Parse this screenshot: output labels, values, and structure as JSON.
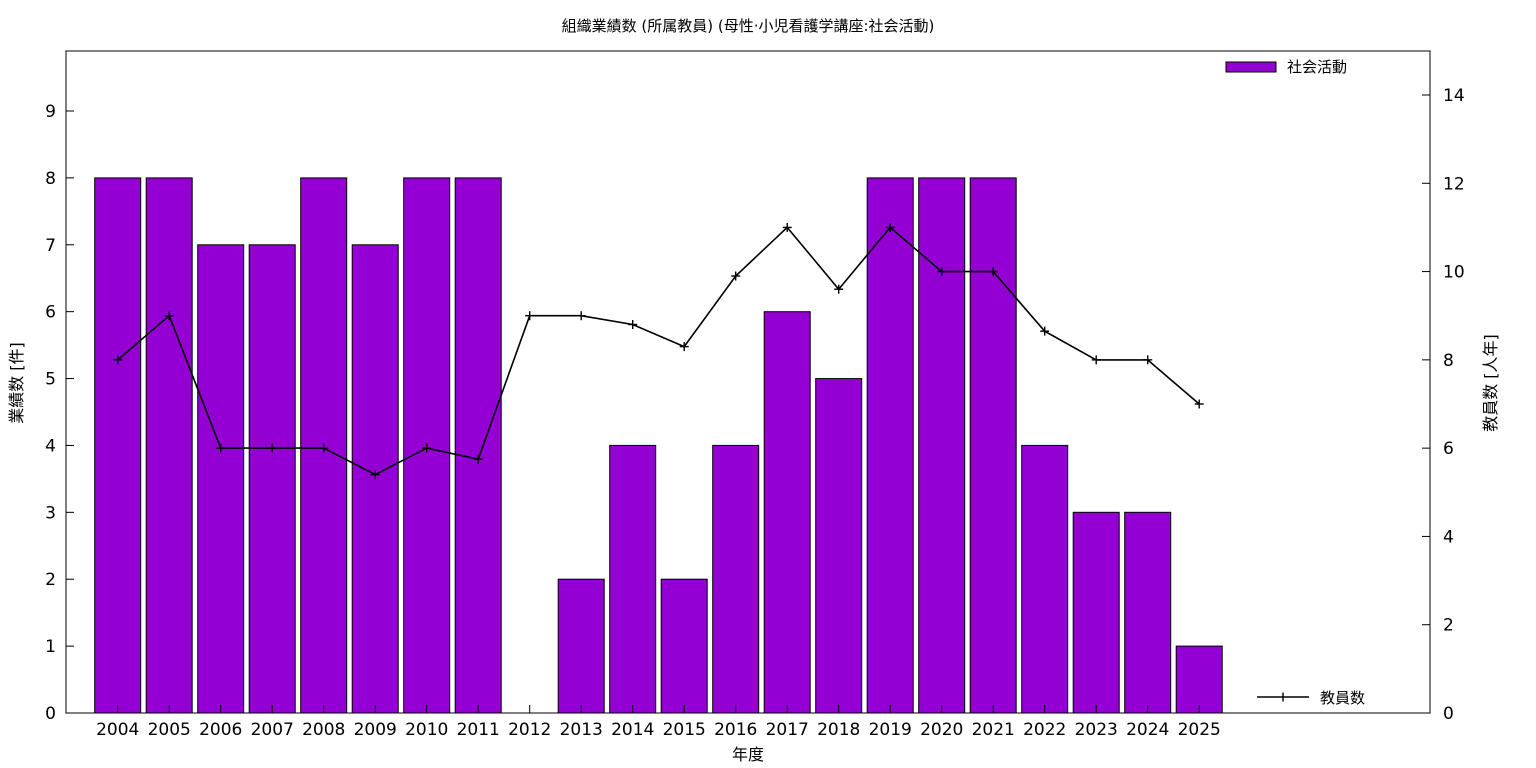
{
  "chart_data": {
    "type": "bar",
    "title": "組織業績数 (所属教員) (母性·小児看護学講座:社会活動)",
    "xlabel": "年度",
    "ylabel": "業績数 [件]",
    "y2label": "教員数 [人年]",
    "categories": [
      "2004",
      "2005",
      "2006",
      "2007",
      "2008",
      "2009",
      "2010",
      "2011",
      "2012",
      "2013",
      "2014",
      "2015",
      "2016",
      "2017",
      "2018",
      "2019",
      "2020",
      "2021",
      "2022",
      "2023",
      "2024",
      "2025"
    ],
    "series": [
      {
        "name": "社会活動",
        "type": "bar",
        "axis": "left",
        "color": "#9400d3",
        "values": [
          8,
          8,
          7,
          7,
          8,
          7,
          8,
          8,
          0,
          2,
          4,
          2,
          4,
          6,
          5,
          8,
          8,
          8,
          4,
          3,
          3,
          1
        ]
      },
      {
        "name": "教員数",
        "type": "line",
        "axis": "right",
        "color": "#000000",
        "values": [
          8,
          9,
          6,
          6,
          6,
          5.4,
          6,
          5.75,
          9,
          9,
          8.8,
          8.3,
          9.9,
          11,
          9.6,
          11,
          10,
          10,
          8.65,
          8,
          8,
          7
        ]
      }
    ],
    "ylim": [
      0,
      9
    ],
    "yticks": [
      0,
      1,
      2,
      3,
      4,
      5,
      6,
      7,
      8,
      9
    ],
    "y2lim": [
      0,
      14
    ],
    "y2ticks": [
      0,
      2,
      4,
      6,
      8,
      10,
      12,
      14
    ],
    "grid": false,
    "legend": [
      "top-right",
      "bottom-right"
    ]
  }
}
